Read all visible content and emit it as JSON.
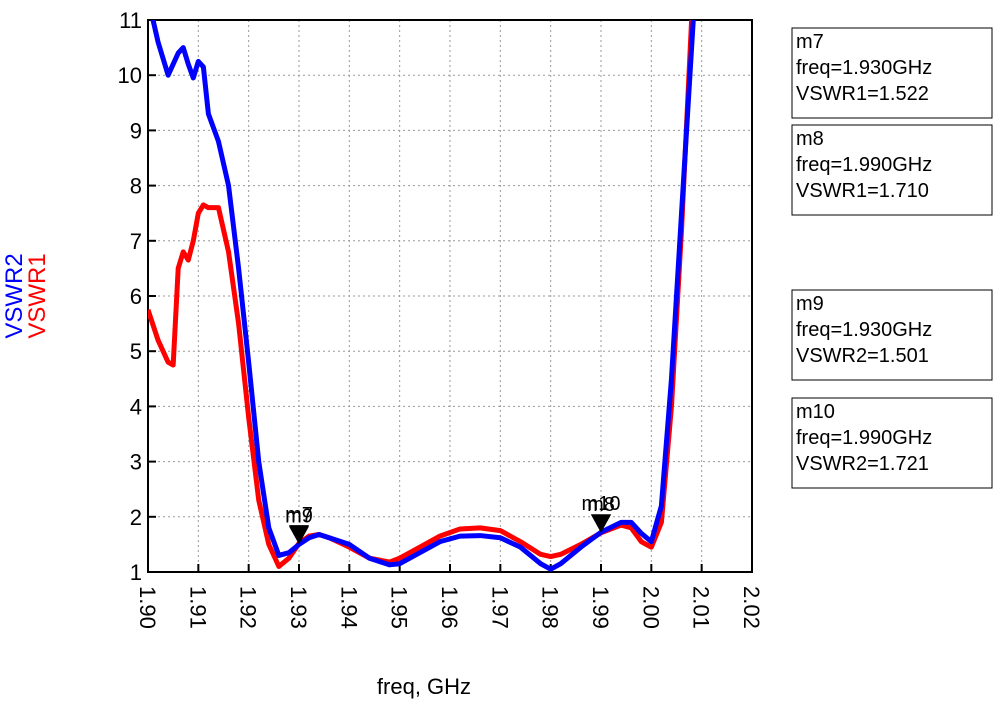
{
  "chart_data": {
    "type": "line",
    "xlabel": "freq, GHz",
    "xlim": [
      1.9,
      2.02
    ],
    "xticks": [
      {
        "value": 1.9,
        "label": "1.90"
      },
      1.91,
      1.92,
      1.93,
      1.94,
      1.95,
      1.96,
      1.97,
      1.98,
      1.99,
      {
        "value": 2.0,
        "label": "2.00"
      },
      2.01,
      2.02
    ],
    "ylim": [
      1,
      11
    ],
    "yticks": [
      1,
      2,
      3,
      4,
      5,
      6,
      7,
      8,
      9,
      10,
      11
    ],
    "grid": true,
    "series": [
      {
        "name": "VSWR1",
        "color": "#ff0000",
        "x": [
          1.9,
          1.902,
          1.904,
          1.905,
          1.906,
          1.907,
          1.908,
          1.909,
          1.91,
          1.911,
          1.912,
          1.914,
          1.916,
          1.918,
          1.92,
          1.922,
          1.924,
          1.926,
          1.928,
          1.93,
          1.932,
          1.934,
          1.936,
          1.94,
          1.944,
          1.948,
          1.95,
          1.954,
          1.958,
          1.962,
          1.966,
          1.97,
          1.974,
          1.978,
          1.98,
          1.982,
          1.986,
          1.99,
          1.994,
          1.996,
          1.998,
          2.0,
          2.002,
          2.004,
          2.006,
          2.008,
          2.009
        ],
        "values": [
          5.75,
          5.2,
          4.8,
          4.75,
          6.5,
          6.8,
          6.65,
          7.0,
          7.5,
          7.65,
          7.6,
          7.6,
          6.8,
          5.5,
          3.8,
          2.3,
          1.5,
          1.1,
          1.25,
          1.52,
          1.65,
          1.68,
          1.62,
          1.45,
          1.25,
          1.18,
          1.25,
          1.45,
          1.65,
          1.78,
          1.8,
          1.75,
          1.55,
          1.32,
          1.28,
          1.32,
          1.5,
          1.71,
          1.85,
          1.8,
          1.55,
          1.45,
          1.9,
          4.0,
          7.2,
          11.0,
          12.0
        ]
      },
      {
        "name": "VSWR2",
        "color": "#0000ff",
        "x": [
          1.9,
          1.902,
          1.904,
          1.906,
          1.907,
          1.908,
          1.909,
          1.91,
          1.911,
          1.912,
          1.914,
          1.916,
          1.918,
          1.92,
          1.922,
          1.924,
          1.926,
          1.928,
          1.93,
          1.932,
          1.934,
          1.936,
          1.94,
          1.944,
          1.948,
          1.95,
          1.954,
          1.958,
          1.962,
          1.966,
          1.97,
          1.974,
          1.978,
          1.98,
          1.982,
          1.986,
          1.99,
          1.994,
          1.996,
          1.998,
          2.0,
          2.002,
          2.004,
          2.006,
          2.008,
          2.009
        ],
        "values": [
          11.4,
          10.6,
          10.0,
          10.4,
          10.5,
          10.2,
          9.95,
          10.25,
          10.15,
          9.3,
          8.8,
          8.0,
          6.5,
          4.8,
          3.0,
          1.8,
          1.3,
          1.35,
          1.5,
          1.62,
          1.68,
          1.62,
          1.5,
          1.25,
          1.13,
          1.15,
          1.35,
          1.55,
          1.65,
          1.66,
          1.62,
          1.45,
          1.15,
          1.05,
          1.15,
          1.45,
          1.72,
          1.9,
          1.9,
          1.7,
          1.55,
          2.2,
          4.5,
          7.5,
          10.5,
          12.0
        ]
      }
    ],
    "markers": [
      {
        "name": "m7",
        "series": 0,
        "freq": 1.93,
        "value": 1.522,
        "freq_label": "freq=1.930GHz",
        "value_label": "VSWR1=1.522"
      },
      {
        "name": "m8",
        "series": 0,
        "freq": 1.99,
        "value": 1.71,
        "freq_label": "freq=1.990GHz",
        "value_label": "VSWR1=1.710"
      },
      {
        "name": "m9",
        "series": 1,
        "freq": 1.93,
        "value": 1.501,
        "freq_label": "freq=1.930GHz",
        "value_label": "VSWR2=1.501"
      },
      {
        "name": "m10",
        "series": 1,
        "freq": 1.99,
        "value": 1.721,
        "freq_label": "freq=1.990GHz",
        "value_label": "VSWR2=1.721"
      }
    ]
  }
}
